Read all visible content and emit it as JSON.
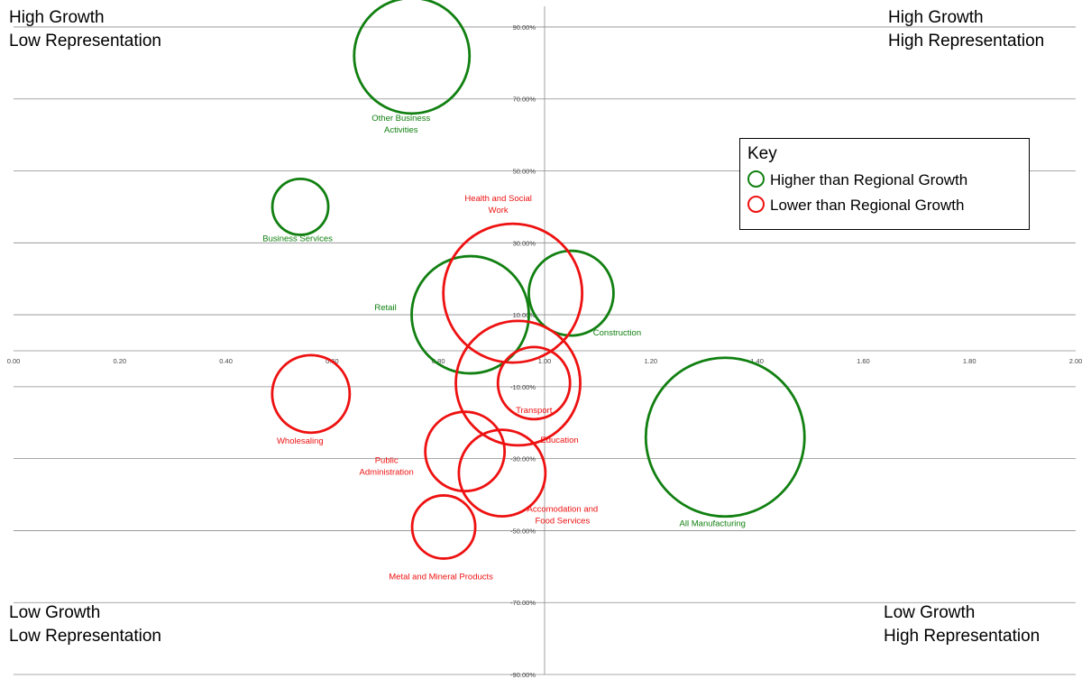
{
  "quadrants": {
    "top_left": [
      "High Growth",
      "Low Representation"
    ],
    "top_right": [
      "High Growth",
      "High Representation"
    ],
    "bottom_left": [
      "Low Growth",
      "Low Representation"
    ],
    "bottom_right": [
      "Low Growth",
      "High Representation"
    ]
  },
  "legend": {
    "title": "Key",
    "items": [
      {
        "label": "Higher than Regional Growth",
        "color": "#118011"
      },
      {
        "label": "Lower than Regional Growth",
        "color": "#ee1111"
      }
    ]
  },
  "chart_data": {
    "type": "bubble",
    "xlim": [
      0,
      2.0
    ],
    "ylim": [
      -0.9,
      0.95
    ],
    "x_ticks": [
      "0.00",
      "0.20",
      "0.40",
      "0.60",
      "0.80",
      "1.00",
      "1.20",
      "1.40",
      "1.60",
      "1.80",
      "2.00"
    ],
    "y_ticks": [
      "90.00%",
      "70.00%",
      "50.00%",
      "30.00%",
      "10.00%",
      "-10.00%",
      "-30.00%",
      "-50.00%",
      "-70.00%",
      "-90.00%"
    ],
    "grid": true,
    "legend_position": "top-right",
    "series": [
      {
        "name": "Higher than Regional Growth",
        "color": "#118011",
        "points": [
          {
            "label": "Other Business Activities",
            "x": 0.75,
            "y": 0.82,
            "size": 64
          },
          {
            "label": "Business Services",
            "x": 0.54,
            "y": 0.4,
            "size": 31
          },
          {
            "label": "Retail",
            "x": 0.86,
            "y": 0.1,
            "size": 65
          },
          {
            "label": "Construction",
            "x": 1.05,
            "y": 0.16,
            "size": 47
          },
          {
            "label": "All Manufacturing",
            "x": 1.34,
            "y": -0.24,
            "size": 88
          }
        ]
      },
      {
        "name": "Lower than Regional Growth",
        "color": "#ee1111",
        "points": [
          {
            "label": "Health and Social Work",
            "x": 0.94,
            "y": 0.16,
            "size": 77
          },
          {
            "label": "Education",
            "x": 0.95,
            "y": -0.09,
            "size": 69
          },
          {
            "label": "Transport",
            "x": 0.98,
            "y": -0.09,
            "size": 40
          },
          {
            "label": "Wholesaling",
            "x": 0.56,
            "y": -0.12,
            "size": 43
          },
          {
            "label": "Public Administration",
            "x": 0.85,
            "y": -0.28,
            "size": 44
          },
          {
            "label": "Accomodation and Food Services",
            "x": 0.92,
            "y": -0.34,
            "size": 48
          },
          {
            "label": "Metal and Mineral Products",
            "x": 0.81,
            "y": -0.49,
            "size": 35
          }
        ]
      }
    ]
  }
}
